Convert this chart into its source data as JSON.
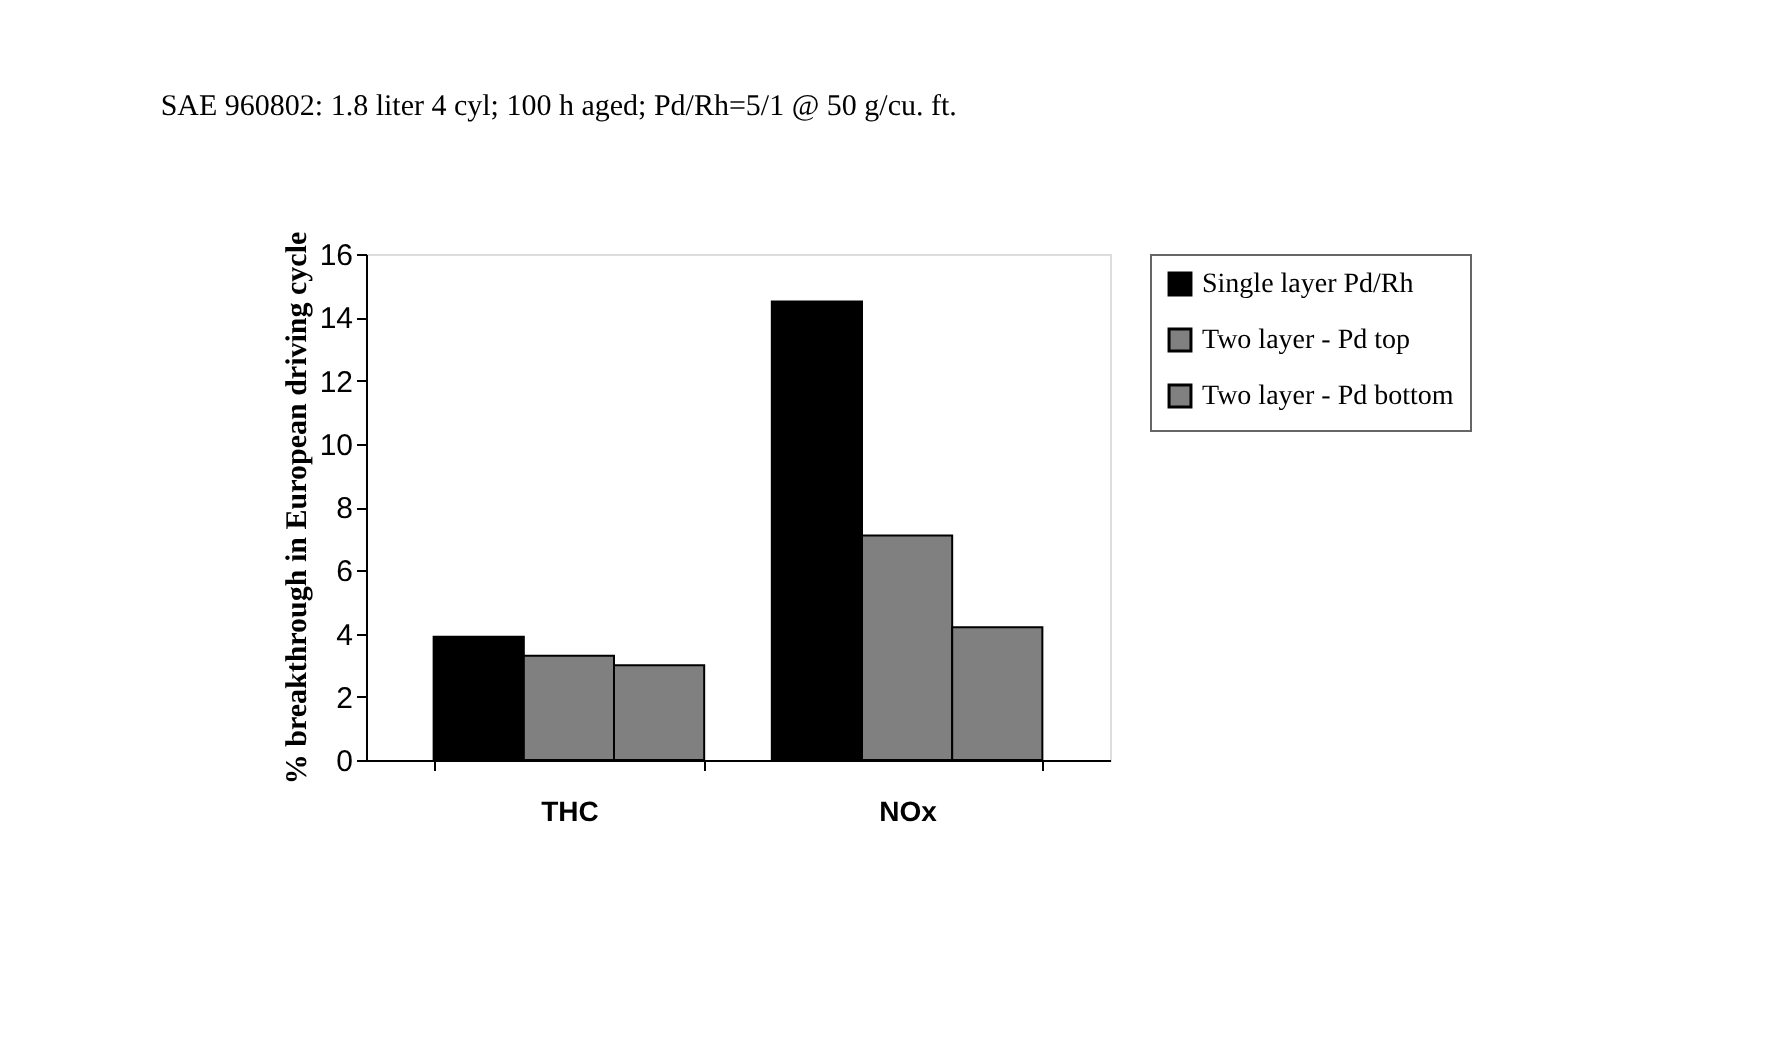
{
  "chart_data": {
    "type": "bar",
    "title": "SAE 960802: 1.8 liter 4 cyl; 100 h aged; Pd/Rh=5/1 @ 50 g/cu. ft.",
    "ylabel": "% breakthrough in European driving cycle",
    "categories": [
      "THC",
      "NOx"
    ],
    "series": [
      {
        "name": "Single layer Pd/Rh",
        "color": "#000000",
        "values": [
          3.9,
          14.5
        ]
      },
      {
        "name": "Two layer - Pd top",
        "color": "#808080",
        "values": [
          3.3,
          7.1
        ]
      },
      {
        "name": "Two layer - Pd bottom",
        "color": "#808080",
        "values": [
          3.0,
          4.2
        ]
      }
    ],
    "ylim": [
      0,
      16
    ],
    "yticks": [
      0,
      2,
      4,
      6,
      8,
      10,
      12,
      14,
      16
    ],
    "grid": false,
    "legend": "right"
  }
}
